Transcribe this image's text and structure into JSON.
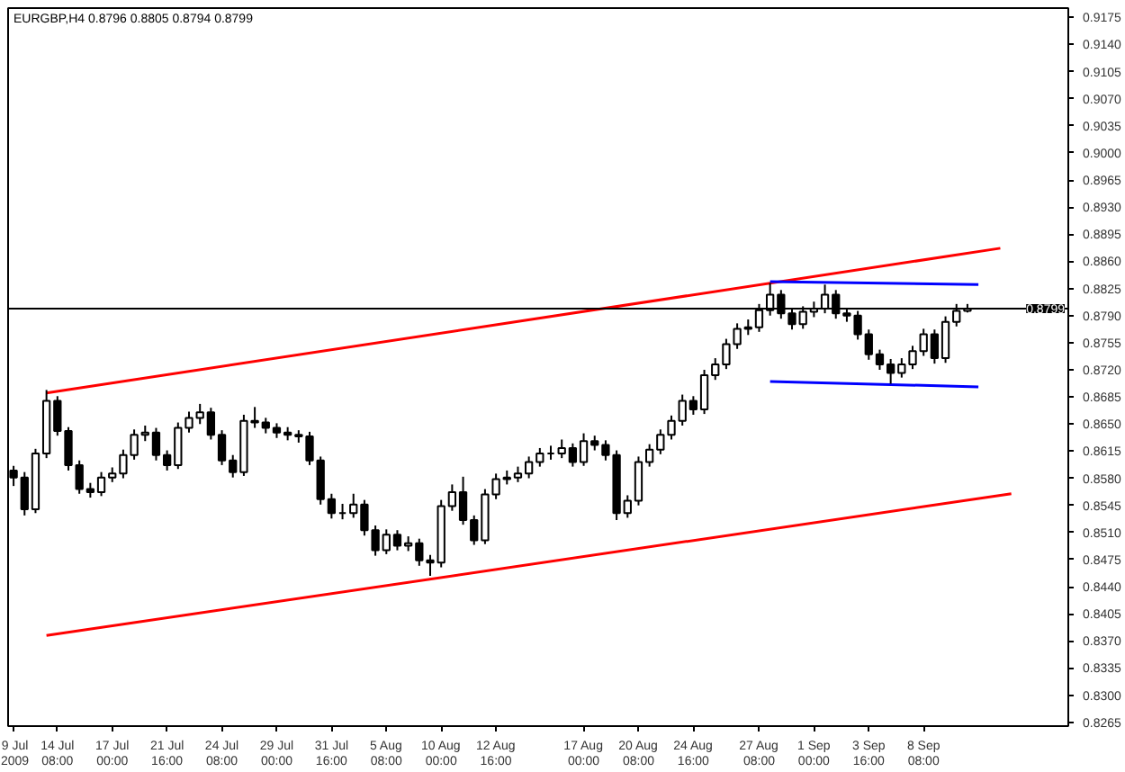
{
  "chart_data": {
    "type": "candlestick",
    "title": "EURGBP,H4 0.8796 0.8805 0.8794 0.8799",
    "categories": [
      "9 Jul 2009",
      null,
      null,
      null,
      "14 Jul 08:00",
      null,
      null,
      null,
      null,
      "17 Jul 00:00",
      null,
      null,
      null,
      null,
      "21 Jul 16:00",
      null,
      null,
      null,
      null,
      "24 Jul 08:00",
      null,
      null,
      null,
      null,
      "29 Jul 00:00",
      null,
      null,
      null,
      null,
      "31 Jul 16:00",
      null,
      null,
      null,
      null,
      "5 Aug 08:00",
      null,
      null,
      null,
      null,
      "10 Aug 00:00",
      null,
      null,
      null,
      null,
      "12 Aug 16:00",
      null,
      null,
      null,
      null,
      null,
      null,
      null,
      "17 Aug 00:00",
      null,
      null,
      null,
      null,
      "20 Aug 08:00",
      null,
      null,
      null,
      null,
      "24 Aug 16:00",
      null,
      null,
      null,
      null,
      null,
      "27 Aug 08:00",
      null,
      null,
      null,
      null,
      "1 Sep 00:00",
      null,
      null,
      null,
      null,
      "3 Sep 16:00",
      null,
      null,
      null,
      null,
      "8 Sep 08:00",
      null,
      null,
      null,
      null,
      null,
      null,
      null,
      null,
      null,
      null,
      null,
      null,
      null
    ],
    "ohlc": [
      [
        0.859,
        0.8596,
        0.857,
        0.8581
      ],
      [
        0.8581,
        0.8588,
        0.8532,
        0.854
      ],
      [
        0.854,
        0.8618,
        0.8535,
        0.8612
      ],
      [
        0.8612,
        0.8694,
        0.8606,
        0.868
      ],
      [
        0.868,
        0.8686,
        0.8635,
        0.8641
      ],
      [
        0.8641,
        0.8646,
        0.859,
        0.8597
      ],
      [
        0.8597,
        0.8603,
        0.856,
        0.8566
      ],
      [
        0.8566,
        0.8574,
        0.8555,
        0.8562
      ],
      [
        0.8562,
        0.8588,
        0.8557,
        0.8581
      ],
      [
        0.8581,
        0.8594,
        0.8575,
        0.8586
      ],
      [
        0.8586,
        0.8617,
        0.858,
        0.861
      ],
      [
        0.861,
        0.8643,
        0.8604,
        0.8636
      ],
      [
        0.8636,
        0.8648,
        0.8628,
        0.8639
      ],
      [
        0.8639,
        0.8645,
        0.8603,
        0.861
      ],
      [
        0.861,
        0.8616,
        0.859,
        0.8597
      ],
      [
        0.8597,
        0.8652,
        0.8592,
        0.8645
      ],
      [
        0.8645,
        0.8666,
        0.8639,
        0.8658
      ],
      [
        0.8658,
        0.8676,
        0.865,
        0.8665
      ],
      [
        0.8665,
        0.8671,
        0.863,
        0.8636
      ],
      [
        0.8636,
        0.8642,
        0.8597,
        0.8603
      ],
      [
        0.8603,
        0.861,
        0.8581,
        0.8588
      ],
      [
        0.8588,
        0.8662,
        0.8583,
        0.8654
      ],
      [
        0.8654,
        0.8672,
        0.8645,
        0.8652
      ],
      [
        0.8652,
        0.8658,
        0.8638,
        0.8645
      ],
      [
        0.8645,
        0.8651,
        0.8632,
        0.8639
      ],
      [
        0.8639,
        0.8646,
        0.8629,
        0.8636
      ],
      [
        0.8636,
        0.8642,
        0.8626,
        0.8634
      ],
      [
        0.8634,
        0.864,
        0.8597,
        0.8603
      ],
      [
        0.8603,
        0.8608,
        0.8546,
        0.8553
      ],
      [
        0.8553,
        0.856,
        0.8528,
        0.8535
      ],
      [
        0.8535,
        0.8547,
        0.8527,
        0.8535
      ],
      [
        0.8535,
        0.856,
        0.8529,
        0.8546
      ],
      [
        0.8546,
        0.8552,
        0.8506,
        0.8513
      ],
      [
        0.8513,
        0.8519,
        0.848,
        0.8487
      ],
      [
        0.8487,
        0.8514,
        0.8482,
        0.8507
      ],
      [
        0.8507,
        0.8513,
        0.8487,
        0.8493
      ],
      [
        0.8493,
        0.8505,
        0.8486,
        0.8496
      ],
      [
        0.8496,
        0.8502,
        0.8467,
        0.8474
      ],
      [
        0.8474,
        0.8481,
        0.8454,
        0.8471
      ],
      [
        0.8471,
        0.8552,
        0.8465,
        0.8544
      ],
      [
        0.8544,
        0.8572,
        0.8538,
        0.8562
      ],
      [
        0.8562,
        0.8582,
        0.852,
        0.8526
      ],
      [
        0.8526,
        0.8532,
        0.8494,
        0.85
      ],
      [
        0.85,
        0.8566,
        0.8495,
        0.8559
      ],
      [
        0.8559,
        0.8586,
        0.8553,
        0.8579
      ],
      [
        0.8579,
        0.859,
        0.8572,
        0.8581
      ],
      [
        0.8581,
        0.8595,
        0.8575,
        0.8586
      ],
      [
        0.8586,
        0.8608,
        0.858,
        0.8601
      ],
      [
        0.8601,
        0.8619,
        0.8595,
        0.8612
      ],
      [
        0.8612,
        0.8622,
        0.8604,
        0.8612
      ],
      [
        0.8612,
        0.863,
        0.8606,
        0.8619
      ],
      [
        0.8619,
        0.8625,
        0.8595,
        0.8601
      ],
      [
        0.8601,
        0.8638,
        0.8596,
        0.8628
      ],
      [
        0.8628,
        0.8635,
        0.8616,
        0.8623
      ],
      [
        0.8623,
        0.8629,
        0.8603,
        0.861
      ],
      [
        0.861,
        0.8616,
        0.8526,
        0.8535
      ],
      [
        0.8535,
        0.8558,
        0.8529,
        0.8551
      ],
      [
        0.8551,
        0.8608,
        0.8545,
        0.8601
      ],
      [
        0.8601,
        0.8624,
        0.8595,
        0.8617
      ],
      [
        0.8617,
        0.8643,
        0.8611,
        0.8636
      ],
      [
        0.8636,
        0.8661,
        0.863,
        0.8654
      ],
      [
        0.8654,
        0.8688,
        0.8648,
        0.868
      ],
      [
        0.868,
        0.8686,
        0.8662,
        0.8669
      ],
      [
        0.8669,
        0.872,
        0.8663,
        0.8713
      ],
      [
        0.8713,
        0.8735,
        0.8707,
        0.8727
      ],
      [
        0.8727,
        0.876,
        0.8721,
        0.8753
      ],
      [
        0.8753,
        0.878,
        0.8747,
        0.8773
      ],
      [
        0.8773,
        0.8785,
        0.8765,
        0.8775
      ],
      [
        0.8775,
        0.8805,
        0.8769,
        0.8797
      ],
      [
        0.8797,
        0.8832,
        0.879,
        0.8817
      ],
      [
        0.8817,
        0.8823,
        0.8786,
        0.8793
      ],
      [
        0.8793,
        0.8799,
        0.8772,
        0.8779
      ],
      [
        0.8779,
        0.8802,
        0.8773,
        0.8795
      ],
      [
        0.8795,
        0.8808,
        0.8788,
        0.8799
      ],
      [
        0.8799,
        0.883,
        0.8793,
        0.8817
      ],
      [
        0.8817,
        0.8823,
        0.8786,
        0.8793
      ],
      [
        0.8793,
        0.88,
        0.8782,
        0.879
      ],
      [
        0.879,
        0.8796,
        0.8759,
        0.8766
      ],
      [
        0.8766,
        0.8772,
        0.8733,
        0.874
      ],
      [
        0.874,
        0.8746,
        0.872,
        0.8727
      ],
      [
        0.8727,
        0.8734,
        0.8702,
        0.8716
      ],
      [
        0.8716,
        0.8735,
        0.871,
        0.8727
      ],
      [
        0.8727,
        0.8751,
        0.8721,
        0.8744
      ],
      [
        0.8744,
        0.8773,
        0.8738,
        0.8766
      ],
      [
        0.8766,
        0.8772,
        0.8728,
        0.8735
      ],
      [
        0.8735,
        0.8789,
        0.8729,
        0.8782
      ],
      [
        0.8782,
        0.8805,
        0.8776,
        0.8796
      ],
      [
        0.8796,
        0.8805,
        0.8794,
        0.8799
      ],
      null,
      null,
      null,
      null,
      null,
      null,
      null,
      null,
      null
    ],
    "color": "#000000",
    "series": [
      {
        "type": "line",
        "color": "#ff0000",
        "values": [
          null,
          null,
          null,
          0.869,
          null,
          null,
          null,
          null,
          null,
          null,
          null,
          null,
          null,
          null,
          null,
          null,
          null,
          null,
          null,
          null,
          null,
          null,
          null,
          null,
          null,
          null,
          null,
          null,
          null,
          null,
          null,
          null,
          null,
          null,
          null,
          null,
          null,
          null,
          null,
          null,
          null,
          null,
          null,
          null,
          null,
          null,
          null,
          null,
          null,
          null,
          null,
          null,
          null,
          null,
          null,
          null,
          null,
          null,
          null,
          null,
          null,
          null,
          null,
          null,
          null,
          null,
          null,
          null,
          null,
          null,
          null,
          null,
          null,
          null,
          null,
          null,
          null,
          null,
          null,
          null,
          null,
          null,
          null,
          null,
          null,
          null,
          null,
          null,
          null,
          null,
          0.8877,
          null,
          null,
          null,
          null,
          null,
          null
        ]
      },
      {
        "type": "line",
        "color": "#ff0000",
        "values": [
          null,
          null,
          null,
          0.8377,
          null,
          null,
          null,
          null,
          null,
          null,
          null,
          null,
          null,
          null,
          null,
          null,
          null,
          null,
          null,
          null,
          null,
          null,
          null,
          null,
          null,
          null,
          null,
          null,
          null,
          null,
          null,
          null,
          null,
          null,
          null,
          null,
          null,
          null,
          null,
          null,
          null,
          null,
          null,
          null,
          null,
          null,
          null,
          null,
          null,
          null,
          null,
          null,
          null,
          null,
          null,
          null,
          null,
          null,
          null,
          null,
          null,
          null,
          null,
          null,
          null,
          null,
          null,
          null,
          null,
          null,
          null,
          null,
          null,
          null,
          null,
          null,
          null,
          null,
          null,
          null,
          null,
          null,
          null,
          null,
          null,
          null,
          null,
          null,
          null,
          null,
          null,
          0.856,
          null,
          null,
          null,
          null,
          null
        ]
      },
      {
        "type": "line",
        "color": "#0000ff",
        "values": [
          null,
          null,
          null,
          null,
          null,
          null,
          null,
          null,
          null,
          null,
          null,
          null,
          null,
          null,
          null,
          null,
          null,
          null,
          null,
          null,
          null,
          null,
          null,
          null,
          null,
          null,
          null,
          null,
          null,
          null,
          null,
          null,
          null,
          null,
          null,
          null,
          null,
          null,
          null,
          null,
          null,
          null,
          null,
          null,
          null,
          null,
          null,
          null,
          null,
          null,
          null,
          null,
          null,
          null,
          null,
          null,
          null,
          null,
          null,
          null,
          null,
          null,
          null,
          null,
          null,
          null,
          null,
          null,
          null,
          0.8834,
          null,
          null,
          null,
          null,
          null,
          null,
          null,
          null,
          null,
          null,
          null,
          null,
          null,
          null,
          null,
          null,
          null,
          null,
          0.883,
          null,
          null,
          null,
          null,
          null,
          null,
          null,
          null
        ]
      },
      {
        "type": "line",
        "color": "#0000ff",
        "values": [
          null,
          null,
          null,
          null,
          null,
          null,
          null,
          null,
          null,
          null,
          null,
          null,
          null,
          null,
          null,
          null,
          null,
          null,
          null,
          null,
          null,
          null,
          null,
          null,
          null,
          null,
          null,
          null,
          null,
          null,
          null,
          null,
          null,
          null,
          null,
          null,
          null,
          null,
          null,
          null,
          null,
          null,
          null,
          null,
          null,
          null,
          null,
          null,
          null,
          null,
          null,
          null,
          null,
          null,
          null,
          null,
          null,
          null,
          null,
          null,
          null,
          null,
          null,
          null,
          null,
          null,
          null,
          null,
          null,
          0.8705,
          null,
          null,
          null,
          null,
          null,
          null,
          null,
          null,
          null,
          null,
          null,
          null,
          null,
          null,
          null,
          null,
          null,
          null,
          0.8698,
          null,
          null,
          null,
          null,
          null,
          null,
          null,
          null
        ]
      }
    ],
    "ref_lines": [
      {
        "axis": "y",
        "value": 0.8799,
        "label": "0.8799",
        "color": "#000000"
      }
    ],
    "ylim": [
      0.826,
      0.9187
    ],
    "yticks": [
      {
        "value": 0.8265,
        "label": "0.8265"
      },
      {
        "value": 0.83,
        "label": "0.8300"
      },
      {
        "value": 0.8335,
        "label": "0.8335"
      },
      {
        "value": 0.837,
        "label": "0.8370"
      },
      {
        "value": 0.8405,
        "label": "0.8405"
      },
      {
        "value": 0.844,
        "label": "0.8440"
      },
      {
        "value": 0.8475,
        "label": "0.8475"
      },
      {
        "value": 0.851,
        "label": "0.8510"
      },
      {
        "value": 0.8545,
        "label": "0.8545"
      },
      {
        "value": 0.858,
        "label": "0.8580"
      },
      {
        "value": 0.8615,
        "label": "0.8615"
      },
      {
        "value": 0.865,
        "label": "0.8650"
      },
      {
        "value": 0.8685,
        "label": "0.8685"
      },
      {
        "value": 0.872,
        "label": "0.8720"
      },
      {
        "value": 0.8755,
        "label": "0.8755"
      },
      {
        "value": 0.879,
        "label": "0.8790"
      },
      {
        "value": 0.8825,
        "label": "0.8825"
      },
      {
        "value": 0.886,
        "label": "0.8860"
      },
      {
        "value": 0.8895,
        "label": "0.8895"
      },
      {
        "value": 0.893,
        "label": "0.8930"
      },
      {
        "value": 0.8965,
        "label": "0.8965"
      },
      {
        "value": 0.9,
        "label": "0.9000"
      },
      {
        "value": 0.9035,
        "label": "0.9035"
      },
      {
        "value": 0.907,
        "label": "0.9070"
      },
      {
        "value": 0.9105,
        "label": "0.9105"
      },
      {
        "value": 0.914,
        "label": "0.9140"
      },
      {
        "value": 0.9175,
        "label": "0.9175"
      }
    ],
    "grid": false
  }
}
